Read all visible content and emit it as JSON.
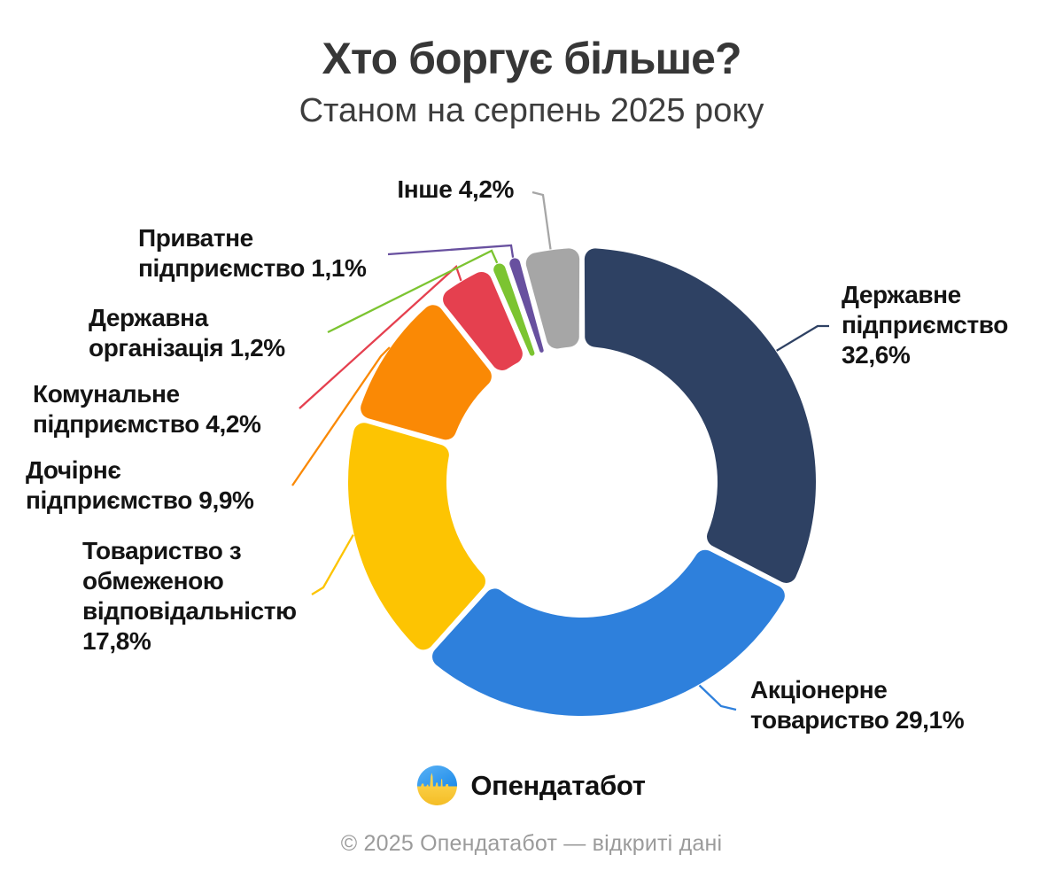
{
  "header": {
    "title": "Хто боргує більше?",
    "subtitle": "Станом на серпень 2025 року"
  },
  "footer": {
    "logo_text": "Опендатабот",
    "copyright": "© 2025 Опендатабот — відкриті дані",
    "logo_blue": "#2f99f0",
    "logo_yellow": "#f9c62e"
  },
  "chart_data": {
    "type": "pie",
    "donut": true,
    "inner_radius_ratio": 0.58,
    "start_angle_deg": 0,
    "direction": "clockwise",
    "value_suffix": "%",
    "title": "Хто боргує більше?",
    "subtitle": "Станом на серпень 2025 року",
    "legend_position": "outside-labels-with-leader-lines",
    "slices": [
      {
        "label": "Державне підприємство",
        "value": 32.6,
        "display": "Державне\nпідприємство\n32,6%",
        "color": "#2e4163"
      },
      {
        "label": "Акціонерне товариство",
        "value": 29.1,
        "display": "Акціонерне\nтовариство 29,1%",
        "color": "#2e80dc"
      },
      {
        "label": "Товариство з обмеженою відповідальністю",
        "value": 17.8,
        "display": "Товариство з\nобмеженою\nвідповідальністю\n17,8%",
        "color": "#fdc402"
      },
      {
        "label": "Дочірнє підприємство",
        "value": 9.9,
        "display": "Дочірнє\nпідприємство 9,9%",
        "color": "#fa8905"
      },
      {
        "label": "Комунальне підприємство",
        "value": 4.2,
        "display": "Комунальне\nпідприємство 4,2%",
        "color": "#e5404f"
      },
      {
        "label": "Державна організація",
        "value": 1.2,
        "display": "Державна\nорганізація 1,2%",
        "color": "#7cc431"
      },
      {
        "label": "Приватне підприємство",
        "value": 1.1,
        "display": "Приватне\nпідприємство 1,1%",
        "color": "#68509f"
      },
      {
        "label": "Інше",
        "value": 4.2,
        "display": "Інше 4,2%",
        "color": "#a6a6a6"
      }
    ]
  }
}
